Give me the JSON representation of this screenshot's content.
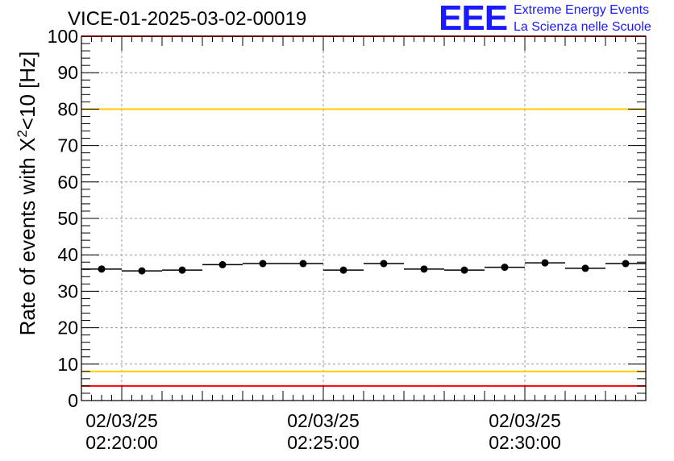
{
  "header": {
    "title": "VICE-01-2025-03-02-00019",
    "logo_text": "EEE",
    "logo_line1": "Extreme Energy Events",
    "logo_line2": "La Scienza nelle Scuole"
  },
  "chart_data": {
    "type": "scatter",
    "ylabel_main": "Rate of events with X",
    "ylabel_sup": "2",
    "ylabel_tail": "<10 [Hz]",
    "xlabel": "",
    "ylim": [
      0,
      100
    ],
    "yticks": [
      0,
      10,
      20,
      30,
      40,
      50,
      60,
      70,
      80,
      90,
      100
    ],
    "x_range_minutes": [
      0,
      14
    ],
    "x_tick_labels": [
      {
        "minute": 1,
        "date": "02/03/25",
        "time": "02:20:00"
      },
      {
        "minute": 6,
        "date": "02/03/25",
        "time": "02:25:00"
      },
      {
        "minute": 11,
        "date": "02/03/25",
        "time": "02:30:00"
      }
    ],
    "grid": true,
    "bin_width_minutes": 1,
    "points": [
      {
        "x": 0.5,
        "y": 36.1
      },
      {
        "x": 1.5,
        "y": 35.6
      },
      {
        "x": 2.5,
        "y": 35.8
      },
      {
        "x": 3.5,
        "y": 37.3
      },
      {
        "x": 4.5,
        "y": 37.6
      },
      {
        "x": 5.5,
        "y": 37.6
      },
      {
        "x": 6.5,
        "y": 35.8
      },
      {
        "x": 7.5,
        "y": 37.6
      },
      {
        "x": 8.5,
        "y": 36.1
      },
      {
        "x": 9.5,
        "y": 35.8
      },
      {
        "x": 10.5,
        "y": 36.6
      },
      {
        "x": 11.5,
        "y": 37.8
      },
      {
        "x": 12.5,
        "y": 36.3
      },
      {
        "x": 13.5,
        "y": 37.6
      }
    ],
    "reference_lines": [
      {
        "y": 100,
        "color": "#ff0000"
      },
      {
        "y": 80,
        "color": "#ffcc00"
      },
      {
        "y": 8,
        "color": "#ffcc00"
      },
      {
        "y": 4,
        "color": "#ff0000"
      }
    ]
  }
}
